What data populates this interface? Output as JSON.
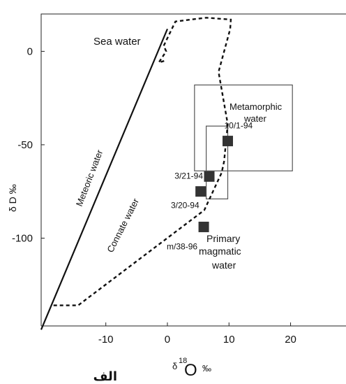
{
  "chart_data": {
    "type": "scatter",
    "xlabel": "δ18O ‰",
    "ylabel": "δD ‰",
    "xlim": [
      -20.5,
      29
    ],
    "ylim": [
      -147,
      20
    ],
    "xticks": [
      -10,
      0,
      10,
      20
    ],
    "yticks": [
      0,
      -50,
      -100
    ],
    "caption": "الف",
    "grid": false,
    "samples": [
      {
        "label": "10/1-94",
        "x": 9.8,
        "y": -48
      },
      {
        "label": "3/21-94",
        "x": 6.8,
        "y": -67
      },
      {
        "label": "3/20-94",
        "x": 5.4,
        "y": -75
      },
      {
        "label": "m/38-96",
        "x": 5.9,
        "y": -94
      }
    ],
    "meteoric_water_line": [
      [
        -20.5,
        -149
      ],
      [
        0,
        12
      ]
    ],
    "fields": [
      {
        "name": "Metamorphic water",
        "x": [
          4.4,
          20.3
        ],
        "y": [
          -64,
          -18
        ]
      },
      {
        "name": "Primary magmatic water",
        "x": [
          6.3,
          9.8
        ],
        "y": [
          -79,
          -40
        ]
      }
    ],
    "connate_water_trend": [
      [
        -18.5,
        -136
      ],
      [
        -14.5,
        -136
      ],
      [
        6,
        -85
      ],
      [
        8.8,
        -65
      ],
      [
        9.2,
        -59
      ],
      [
        9.8,
        -39
      ],
      [
        8.3,
        -11
      ],
      [
        10.2,
        12
      ],
      [
        10.3,
        17
      ],
      [
        6.3,
        18
      ],
      [
        1.3,
        16
      ],
      [
        -0.6,
        3
      ],
      [
        -0.2,
        0
      ],
      [
        -1.4,
        -6
      ],
      [
        -0.4,
        -5
      ]
    ],
    "annotations": {
      "sea_water": "Sea water",
      "meteoric_water": "Meteoric water",
      "connate_water": "Connate water",
      "metamorphic_line1": "Metamorphic",
      "metamorphic_line2": "water",
      "magmatic_line1": "Primary",
      "magmatic_line2": "magmatic",
      "magmatic_line3": "water"
    },
    "colors": {
      "marker": "#333333",
      "line": "#111111",
      "frame": "#222222"
    }
  }
}
